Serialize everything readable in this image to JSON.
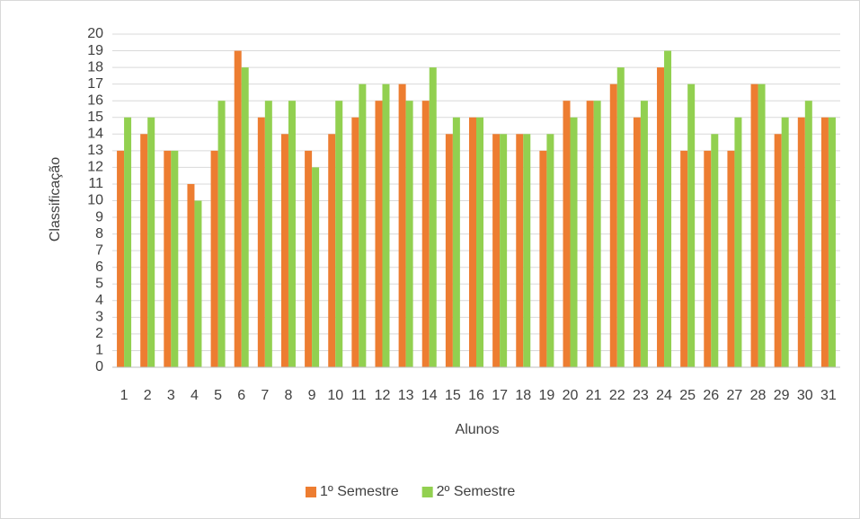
{
  "chart_data": {
    "type": "bar",
    "x_label": "Alunos",
    "y_label": "Classificação",
    "categories": [
      "1",
      "2",
      "3",
      "4",
      "5",
      "6",
      "7",
      "8",
      "9",
      "10",
      "11",
      "12",
      "13",
      "14",
      "15",
      "16",
      "17",
      "18",
      "19",
      "20",
      "21",
      "22",
      "23",
      "24",
      "25",
      "26",
      "27",
      "28",
      "29",
      "30",
      "31"
    ],
    "series": [
      {
        "name": "1º Semestre",
        "color": "#ed7d31",
        "values": [
          13,
          14,
          13,
          11,
          13,
          19,
          15,
          14,
          13,
          14,
          15,
          16,
          17,
          16,
          14,
          15,
          14,
          14,
          13,
          16,
          16,
          17,
          15,
          18,
          13,
          13,
          13,
          17,
          14,
          15,
          15
        ]
      },
      {
        "name": "2º Semestre",
        "color": "#92d050",
        "values": [
          15,
          15,
          13,
          10,
          16,
          18,
          16,
          16,
          12,
          16,
          17,
          17,
          16,
          18,
          15,
          15,
          14,
          14,
          14,
          15,
          16,
          18,
          16,
          19,
          17,
          14,
          15,
          17,
          15,
          16,
          15
        ]
      }
    ],
    "ylim": [
      0,
      20
    ],
    "yticks": [
      0,
      1,
      2,
      3,
      4,
      5,
      6,
      7,
      8,
      9,
      10,
      11,
      12,
      13,
      14,
      15,
      16,
      17,
      18,
      19,
      20
    ],
    "grid": true,
    "legend": "bottom"
  }
}
